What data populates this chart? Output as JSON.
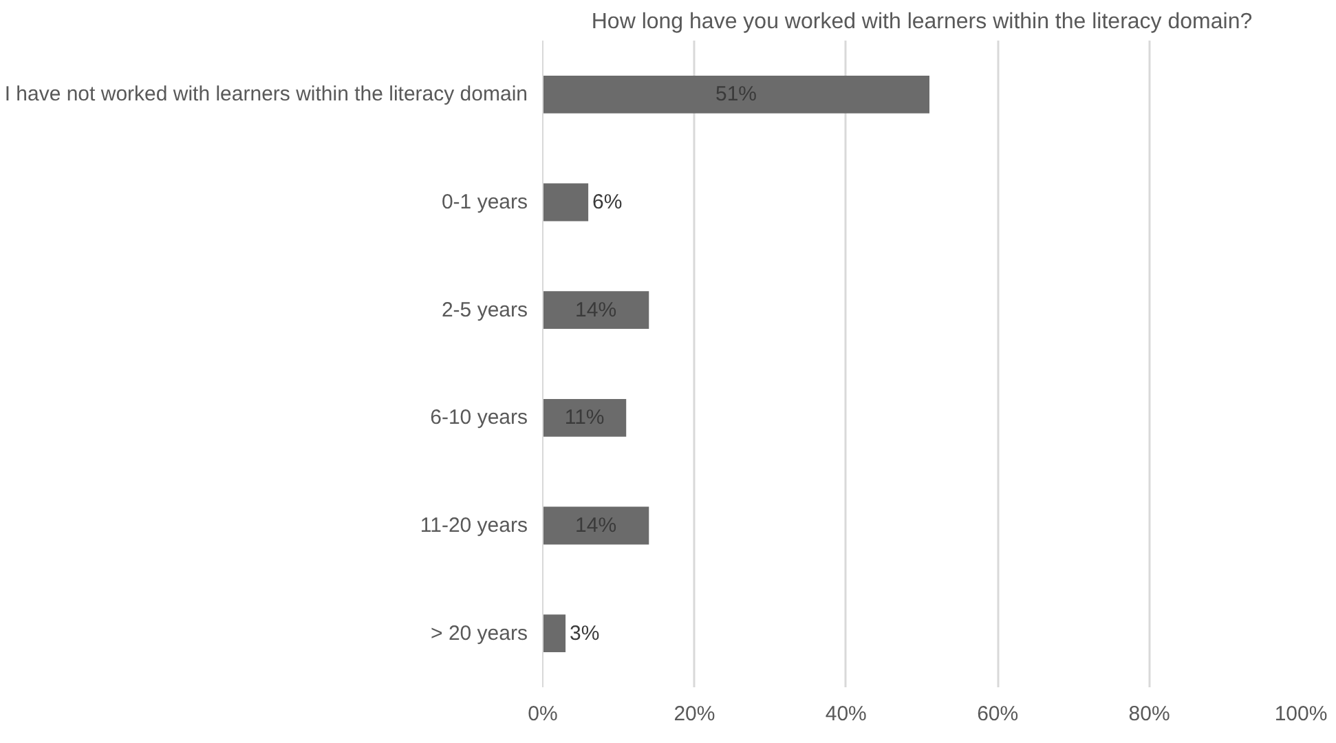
{
  "chart_data": {
    "type": "bar",
    "orientation": "horizontal",
    "title": "How long have you worked with learners within the literacy domain?",
    "categories": [
      "I have not worked with learners within the literacy domain",
      "0-1 years",
      "2-5 years",
      "6-10 years",
      "11-20 years",
      "> 20 years"
    ],
    "values": [
      51,
      6,
      14,
      11,
      14,
      3
    ],
    "value_labels": [
      "51%",
      "6%",
      "14%",
      "11%",
      "14%",
      "3%"
    ],
    "color": "#6b6b6b",
    "xlim": [
      0,
      100
    ],
    "xticks": [
      {
        "value": 0,
        "label": "0%"
      },
      {
        "value": 20,
        "label": "20%"
      },
      {
        "value": 40,
        "label": "40%"
      },
      {
        "value": 60,
        "label": "60%"
      },
      {
        "value": 80,
        "label": "80%"
      },
      {
        "value": 100,
        "label": "100%"
      }
    ],
    "grid": "x"
  }
}
